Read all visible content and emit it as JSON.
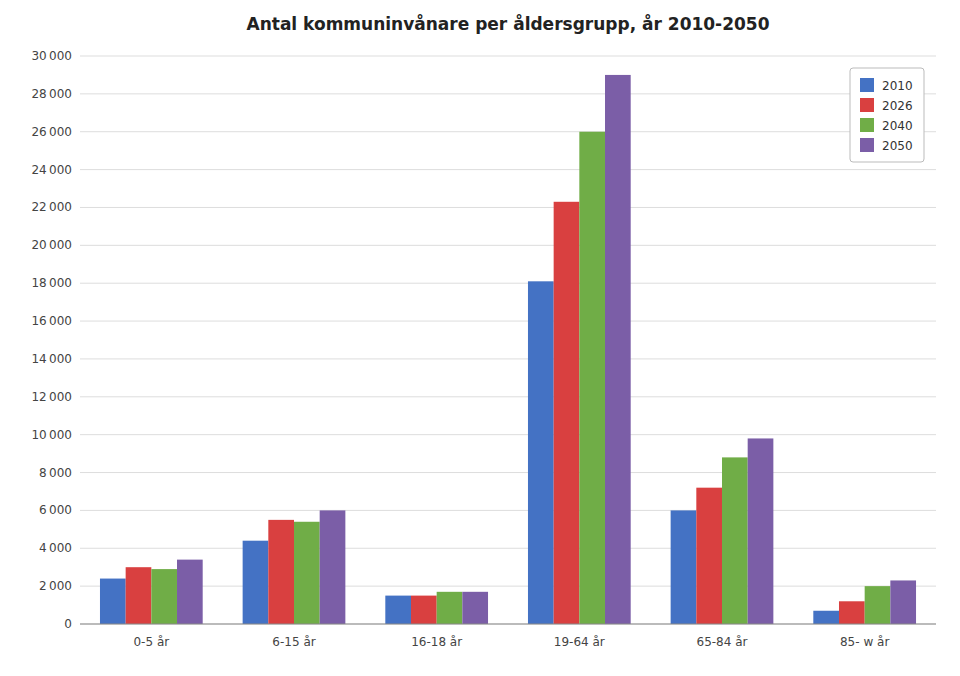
{
  "chart_data": {
    "type": "bar",
    "title": "Antal kommuninvånare per åldersgrupp, år 2010-2050",
    "categories": [
      "0-5 år",
      "6-15 år",
      "16-18 år",
      "19-64 år",
      "65-84 år",
      "85- w år"
    ],
    "series": [
      {
        "name": "2010",
        "color": "#4472C4",
        "values": [
          2400,
          4400,
          1500,
          18100,
          6000,
          700
        ]
      },
      {
        "name": "2026",
        "color": "#D94040",
        "values": [
          3000,
          5500,
          1500,
          22300,
          7200,
          1200
        ]
      },
      {
        "name": "2040",
        "color": "#70AD47",
        "values": [
          2900,
          5400,
          1700,
          26000,
          8800,
          2000
        ]
      },
      {
        "name": "2050",
        "color": "#7B5EA7",
        "values": [
          3400,
          6000,
          1700,
          29000,
          9800,
          2300
        ]
      }
    ],
    "ylim": [
      0,
      30000
    ],
    "yticks": [
      0,
      {
        "value": 2000,
        "label": "2 000"
      },
      {
        "value": 4000,
        "label": "4 000"
      },
      {
        "value": 6000,
        "label": "6 000"
      },
      {
        "value": 8000,
        "label": "8 000"
      },
      {
        "value": 10000,
        "label": "10 000"
      },
      {
        "value": 12000,
        "label": "12 000"
      },
      {
        "value": 14000,
        "label": "14 000"
      },
      {
        "value": 16000,
        "label": "16 000"
      },
      {
        "value": 18000,
        "label": "18 000"
      },
      {
        "value": 20000,
        "label": "20 000"
      },
      {
        "value": 22000,
        "label": "22 000"
      },
      {
        "value": 24000,
        "label": "24 000"
      },
      {
        "value": 26000,
        "label": "26 000"
      },
      {
        "value": 28000,
        "label": "28 000"
      },
      {
        "value": 30000,
        "label": "30 000"
      }
    ],
    "grid": true,
    "legend": "upper right"
  }
}
